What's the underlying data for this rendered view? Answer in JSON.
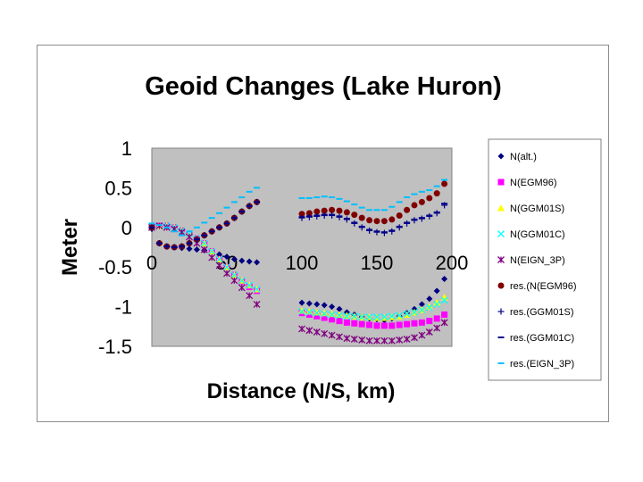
{
  "chart_data": {
    "type": "scatter",
    "title": "Geoid Changes (Lake Huron)",
    "xlabel": "Distance (N/S, km)",
    "ylabel": "Meter",
    "xlim": [
      0,
      200
    ],
    "ylim": [
      -1.5,
      1
    ],
    "xticks": [
      "0",
      "50",
      "100",
      "150",
      "200"
    ],
    "yticks": [
      "1",
      "0.5",
      "0",
      "-0.5",
      "-1",
      "-1.5"
    ],
    "grid": false,
    "plot_background": "#c0c0c0",
    "legend_position": "right",
    "series": [
      {
        "name": "N(alt.)",
        "color": "#000080",
        "marker": "diamond",
        "x": [
          0,
          5,
          10,
          15,
          20,
          25,
          30,
          35,
          40,
          45,
          50,
          55,
          60,
          65,
          70,
          100,
          105,
          110,
          115,
          120,
          125,
          130,
          135,
          140,
          145,
          150,
          155,
          160,
          165,
          170,
          175,
          180,
          185,
          190,
          195
        ],
        "y": [
          -0.02,
          -0.2,
          -0.24,
          -0.25,
          -0.26,
          -0.27,
          -0.28,
          -0.29,
          -0.31,
          -0.34,
          -0.37,
          -0.4,
          -0.42,
          -0.43,
          -0.44,
          -0.95,
          -0.96,
          -0.97,
          -0.98,
          -1.0,
          -1.03,
          -1.07,
          -1.1,
          -1.13,
          -1.15,
          -1.16,
          -1.17,
          -1.15,
          -1.12,
          -1.08,
          -1.03,
          -0.97,
          -0.9,
          -0.8,
          -0.65
        ]
      },
      {
        "name": "N(EGM96)",
        "color": "#ff00ff",
        "marker": "square",
        "x": [
          0,
          5,
          10,
          15,
          20,
          25,
          30,
          35,
          40,
          45,
          50,
          55,
          60,
          65,
          70,
          100,
          105,
          110,
          115,
          120,
          125,
          130,
          135,
          140,
          145,
          150,
          155,
          160,
          165,
          170,
          175,
          180,
          185,
          190,
          195
        ],
        "y": [
          0.0,
          0.02,
          0.02,
          0.0,
          -0.04,
          -0.08,
          -0.14,
          -0.2,
          -0.3,
          -0.4,
          -0.5,
          -0.6,
          -0.68,
          -0.75,
          -0.8,
          -1.08,
          -1.1,
          -1.12,
          -1.14,
          -1.16,
          -1.18,
          -1.2,
          -1.21,
          -1.22,
          -1.23,
          -1.24,
          -1.24,
          -1.24,
          -1.23,
          -1.22,
          -1.21,
          -1.2,
          -1.18,
          -1.15,
          -1.1
        ]
      },
      {
        "name": "N(GGM01S)",
        "color": "#ffff00",
        "marker": "triangle",
        "x": [
          0,
          5,
          10,
          15,
          20,
          25,
          30,
          35,
          40,
          45,
          50,
          55,
          60,
          65,
          70,
          100,
          105,
          110,
          115,
          120,
          125,
          130,
          135,
          140,
          145,
          150,
          155,
          160,
          165,
          170,
          175,
          180,
          185,
          190,
          195
        ],
        "y": [
          0.0,
          0.02,
          0.02,
          0.0,
          -0.04,
          -0.08,
          -0.14,
          -0.2,
          -0.3,
          -0.4,
          -0.5,
          -0.6,
          -0.67,
          -0.73,
          -0.78,
          -1.05,
          -1.06,
          -1.07,
          -1.08,
          -1.09,
          -1.1,
          -1.11,
          -1.12,
          -1.13,
          -1.13,
          -1.14,
          -1.14,
          -1.13,
          -1.12,
          -1.1,
          -1.07,
          -1.04,
          -1.0,
          -0.95,
          -0.88
        ]
      },
      {
        "name": "N(GGM01C)",
        "color": "#00ffff",
        "marker": "x",
        "x": [
          0,
          5,
          10,
          15,
          20,
          25,
          30,
          35,
          40,
          45,
          50,
          55,
          60,
          65,
          70,
          100,
          105,
          110,
          115,
          120,
          125,
          130,
          135,
          140,
          145,
          150,
          155,
          160,
          165,
          170,
          175,
          180,
          185,
          190,
          195
        ],
        "y": [
          0.0,
          0.02,
          0.02,
          0.0,
          -0.04,
          -0.08,
          -0.14,
          -0.2,
          -0.3,
          -0.4,
          -0.5,
          -0.6,
          -0.67,
          -0.73,
          -0.78,
          -1.06,
          -1.07,
          -1.08,
          -1.09,
          -1.1,
          -1.11,
          -1.12,
          -1.12,
          -1.13,
          -1.13,
          -1.13,
          -1.13,
          -1.12,
          -1.11,
          -1.09,
          -1.07,
          -1.04,
          -1.01,
          -0.97,
          -0.92
        ]
      },
      {
        "name": "N(EIGN_3P)",
        "color": "#800080",
        "marker": "star",
        "x": [
          0,
          5,
          10,
          15,
          20,
          25,
          30,
          35,
          40,
          45,
          50,
          55,
          60,
          65,
          70,
          100,
          105,
          110,
          115,
          120,
          125,
          130,
          135,
          140,
          145,
          150,
          155,
          160,
          165,
          170,
          175,
          180,
          185,
          190,
          195
        ],
        "y": [
          0.0,
          0.02,
          0.0,
          -0.02,
          -0.06,
          -0.12,
          -0.2,
          -0.28,
          -0.38,
          -0.48,
          -0.58,
          -0.67,
          -0.76,
          -0.86,
          -0.97,
          -1.28,
          -1.3,
          -1.32,
          -1.34,
          -1.36,
          -1.38,
          -1.4,
          -1.41,
          -1.42,
          -1.43,
          -1.43,
          -1.43,
          -1.43,
          -1.42,
          -1.41,
          -1.39,
          -1.36,
          -1.32,
          -1.27,
          -1.2
        ]
      },
      {
        "name": "res.(N(EGM96)",
        "color": "#800000",
        "marker": "circle",
        "x": [
          0,
          5,
          10,
          15,
          20,
          25,
          30,
          35,
          40,
          45,
          50,
          55,
          60,
          65,
          70,
          100,
          105,
          110,
          115,
          120,
          125,
          130,
          135,
          140,
          145,
          150,
          155,
          160,
          165,
          170,
          175,
          180,
          185,
          190,
          195
        ],
        "y": [
          0.0,
          -0.2,
          -0.24,
          -0.25,
          -0.24,
          -0.2,
          -0.15,
          -0.1,
          -0.05,
          0.0,
          0.05,
          0.12,
          0.2,
          0.27,
          0.32,
          0.17,
          0.18,
          0.2,
          0.21,
          0.22,
          0.21,
          0.19,
          0.16,
          0.12,
          0.09,
          0.08,
          0.08,
          0.1,
          0.15,
          0.22,
          0.28,
          0.32,
          0.37,
          0.43,
          0.55
        ]
      },
      {
        "name": "res.(GGM01S)",
        "color": "#00008b",
        "marker": "plus",
        "x": [
          0,
          5,
          10,
          15,
          20,
          25,
          30,
          35,
          40,
          45,
          50,
          55,
          60,
          65,
          70,
          100,
          105,
          110,
          115,
          120,
          125,
          130,
          135,
          140,
          145,
          150,
          155,
          160,
          165,
          170,
          175,
          180,
          185,
          190,
          195
        ],
        "y": [
          0.0,
          -0.2,
          -0.24,
          -0.25,
          -0.24,
          -0.2,
          -0.15,
          -0.1,
          -0.05,
          0.0,
          0.05,
          0.12,
          0.2,
          0.27,
          0.32,
          0.12,
          0.13,
          0.14,
          0.15,
          0.15,
          0.13,
          0.1,
          0.05,
          0.0,
          -0.04,
          -0.06,
          -0.07,
          -0.05,
          0.0,
          0.05,
          0.09,
          0.11,
          0.14,
          0.18,
          0.28
        ]
      },
      {
        "name": "res.(GGM01C)",
        "color": "#00008b",
        "marker": "dash",
        "x": [
          0,
          5,
          10,
          15,
          20,
          25,
          30,
          35,
          40,
          45,
          50,
          55,
          60,
          65,
          70,
          100,
          105,
          110,
          115,
          120,
          125,
          130,
          135,
          140,
          145,
          150,
          155,
          160,
          165,
          170,
          175,
          180,
          185,
          190,
          195
        ],
        "y": [
          0.0,
          -0.2,
          -0.24,
          -0.25,
          -0.24,
          -0.2,
          -0.15,
          -0.1,
          -0.05,
          0.0,
          0.05,
          0.12,
          0.2,
          0.27,
          0.32,
          0.13,
          0.14,
          0.15,
          0.16,
          0.16,
          0.14,
          0.11,
          0.06,
          0.01,
          -0.03,
          -0.05,
          -0.06,
          -0.04,
          0.01,
          0.06,
          0.1,
          0.12,
          0.15,
          0.19,
          0.3
        ]
      },
      {
        "name": "res.(EIGN_3P)",
        "color": "#00bfff",
        "marker": "dash",
        "x": [
          0,
          5,
          10,
          15,
          20,
          25,
          30,
          35,
          40,
          45,
          50,
          55,
          60,
          65,
          70,
          100,
          105,
          110,
          115,
          120,
          125,
          130,
          135,
          140,
          145,
          150,
          155,
          160,
          165,
          170,
          175,
          180,
          185,
          190,
          195
        ],
        "y": [
          0.05,
          0.03,
          0.0,
          -0.05,
          -0.1,
          -0.05,
          0.0,
          0.06,
          0.12,
          0.18,
          0.25,
          0.32,
          0.38,
          0.45,
          0.5,
          0.37,
          0.37,
          0.38,
          0.39,
          0.38,
          0.36,
          0.33,
          0.29,
          0.25,
          0.22,
          0.22,
          0.22,
          0.26,
          0.32,
          0.38,
          0.42,
          0.45,
          0.47,
          0.52,
          0.6
        ]
      }
    ]
  }
}
